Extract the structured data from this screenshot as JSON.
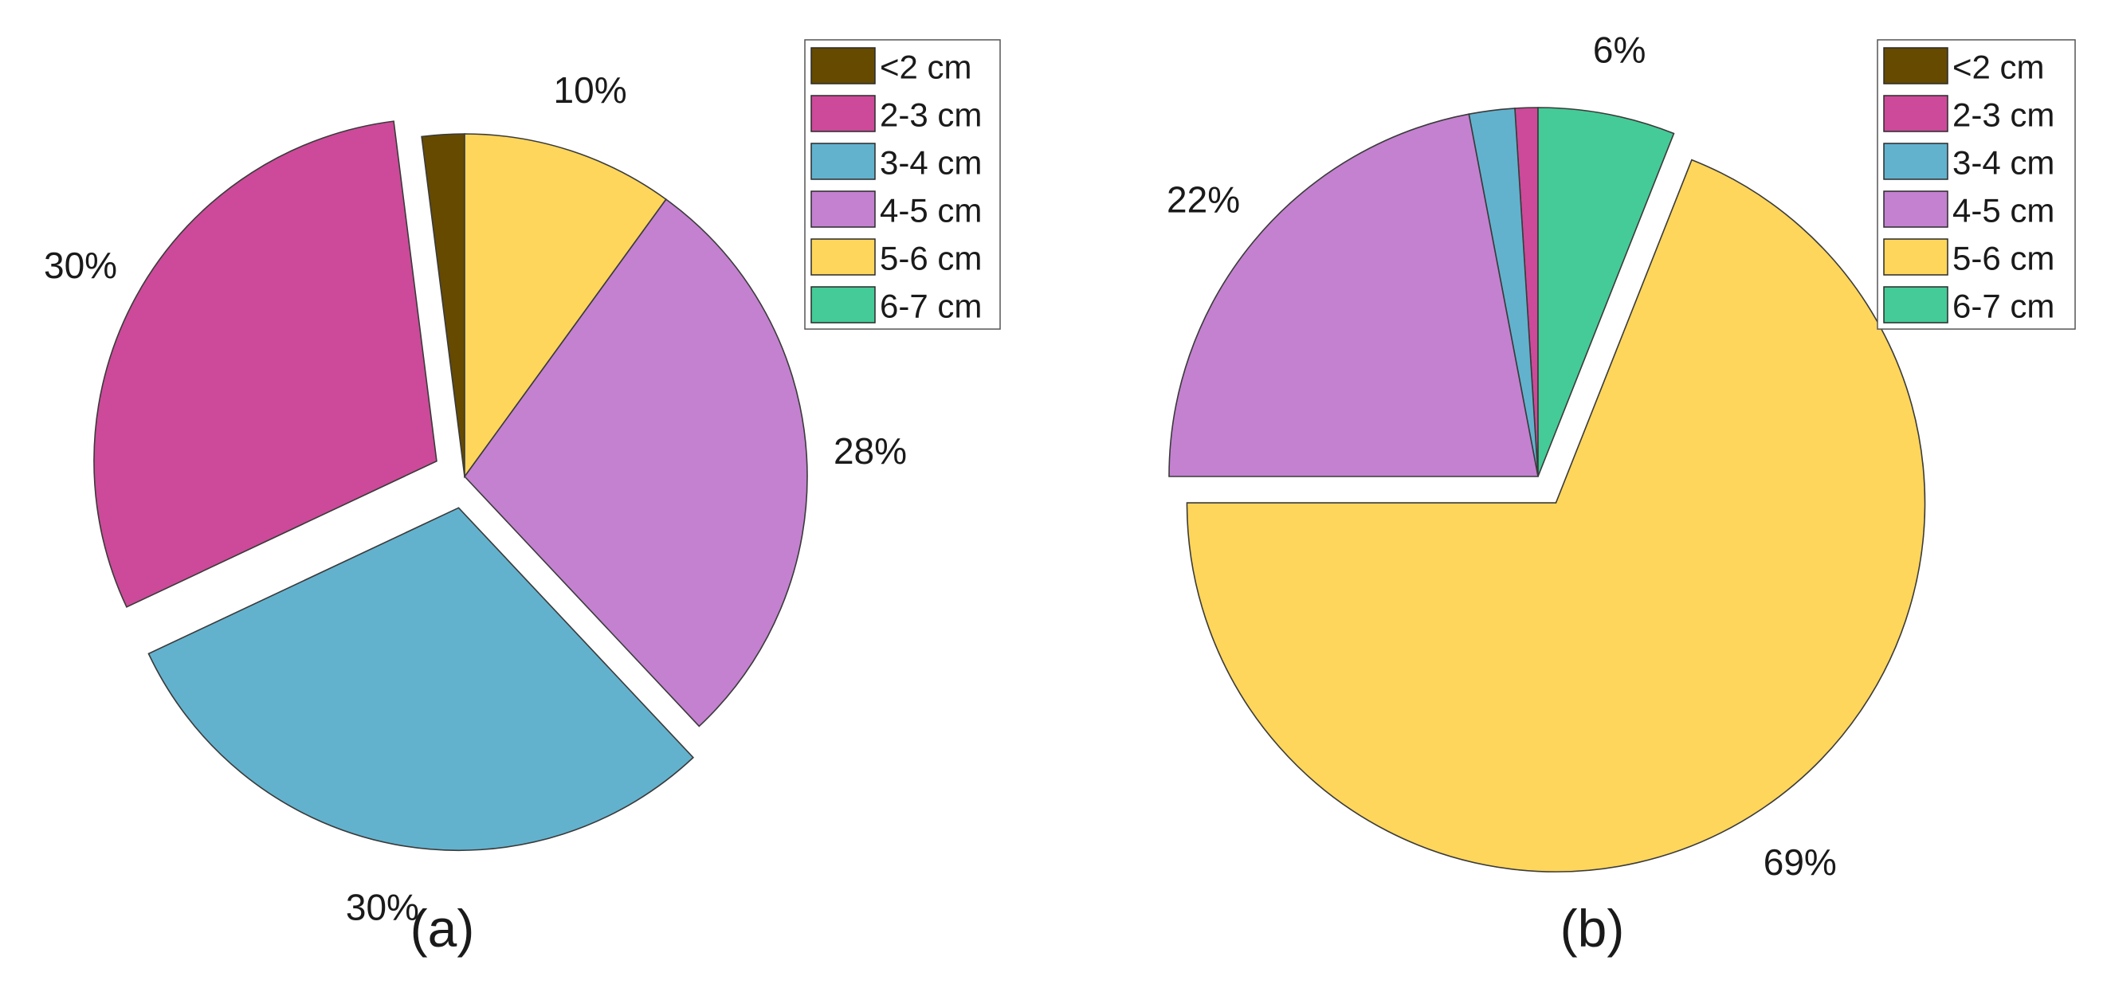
{
  "chart_data": [
    {
      "type": "pie",
      "panel_label": "(a)",
      "legend_position": "top-right",
      "slices": [
        {
          "name": "<2 cm",
          "value": 2,
          "color": "#654A00",
          "label": "",
          "exploded": false
        },
        {
          "name": "2-3 cm",
          "value": 30,
          "color": "#CC4A99",
          "label": "30%",
          "exploded": true
        },
        {
          "name": "3-4 cm",
          "value": 30,
          "color": "#62B2CE",
          "label": "30%",
          "exploded": true
        },
        {
          "name": "4-5 cm",
          "value": 28,
          "color": "#C381D0",
          "label": "28%",
          "exploded": false
        },
        {
          "name": "5-6 cm",
          "value": 10,
          "color": "#FED65B",
          "label": "10%",
          "exploded": false
        },
        {
          "name": "6-7 cm",
          "value": 0,
          "color": "#45CB97",
          "label": "",
          "exploded": false
        }
      ]
    },
    {
      "type": "pie",
      "panel_label": "(b)",
      "legend_position": "top-right",
      "slices": [
        {
          "name": "<2 cm",
          "value": 0,
          "color": "#654A00",
          "label": "",
          "exploded": false
        },
        {
          "name": "2-3 cm",
          "value": 1,
          "color": "#CC4A99",
          "label": "",
          "exploded": false
        },
        {
          "name": "3-4 cm",
          "value": 2,
          "color": "#62B2CE",
          "label": "",
          "exploded": false
        },
        {
          "name": "4-5 cm",
          "value": 22,
          "color": "#C381D0",
          "label": "22%",
          "exploded": false
        },
        {
          "name": "5-6 cm",
          "value": 69,
          "color": "#FED65B",
          "label": "69%",
          "exploded": true
        },
        {
          "name": "6-7 cm",
          "value": 6,
          "color": "#45CB97",
          "label": "6%",
          "exploded": false
        }
      ]
    }
  ]
}
